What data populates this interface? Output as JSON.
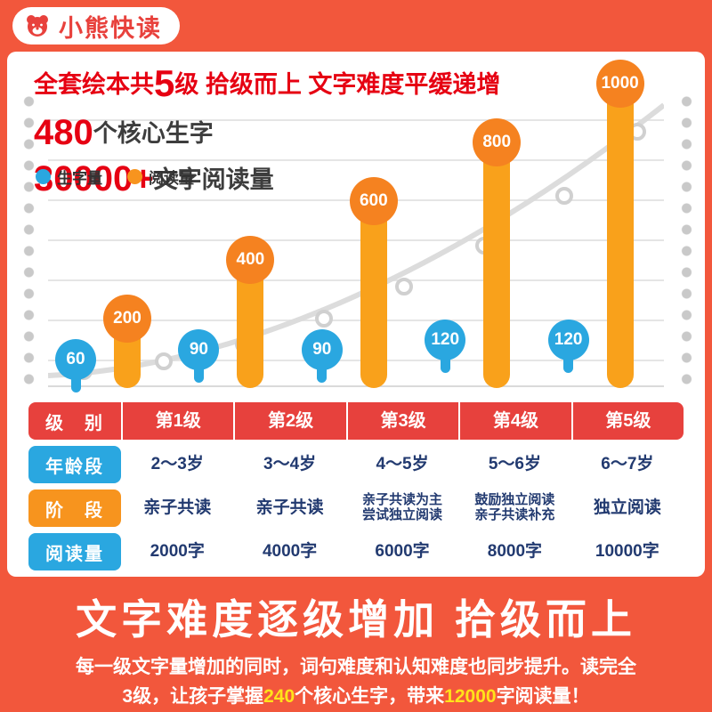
{
  "brand": {
    "name": "小熊快读",
    "logo": "bear-icon"
  },
  "card": {
    "title": {
      "pre": "全套绘本共",
      "big": "5",
      "post": "级  拾级而上  文字难度平缓递增"
    },
    "stat1": {
      "big": "480",
      "rest": "个核心生字"
    },
    "stat2": {
      "big": "30000+",
      "rest": "文字阅读量"
    },
    "legend": [
      {
        "label": "生字量",
        "color": "#2aa7e0"
      },
      {
        "label": "阅读量",
        "color": "#f7941e"
      }
    ]
  },
  "chart_data": {
    "type": "bar",
    "categories": [
      "第1级",
      "第2级",
      "第3级",
      "第4级",
      "第5级"
    ],
    "series": [
      {
        "name": "生字量",
        "color": "#2aa7e0",
        "values": [
          60,
          90,
          90,
          120,
          120
        ]
      },
      {
        "name": "阅读量",
        "color": "#f9a11b",
        "values": [
          200,
          400,
          600,
          800,
          1000
        ]
      }
    ],
    "ylim": [
      0,
      1000
    ],
    "grid": true,
    "legend_position": "top-left",
    "title": "全套绘本共5级 文字难度平缓递增"
  },
  "table": {
    "rows": [
      {
        "label": "级　别",
        "style": "red",
        "values": [
          "第1级",
          "第2级",
          "第3级",
          "第4级",
          "第5级"
        ]
      },
      {
        "label": "年龄段",
        "style": "blue",
        "values": [
          "2～3岁",
          "3～4岁",
          "4～5岁",
          "5～6岁",
          "6～7岁"
        ]
      },
      {
        "label": "阶　段",
        "style": "orange",
        "values": [
          "亲子共读",
          "亲子共读",
          "亲子共读为主\n尝试独立阅读",
          "鼓励独立阅读\n亲子共读补充",
          "独立阅读"
        ]
      },
      {
        "label": "阅读量",
        "style": "blue",
        "values": [
          "2000字",
          "4000字",
          "6000字",
          "8000字",
          "10000字"
        ]
      }
    ]
  },
  "footer": {
    "headline": "文字难度逐级增加 拾级而上",
    "line1": "每一级文字量增加的同时，词句难度和认知难度也同步提升。读完全",
    "line2_parts": [
      {
        "text": "3级，让孩子掌握",
        "hl": false
      },
      {
        "text": "240",
        "hl": true
      },
      {
        "text": "个核心生字，带来",
        "hl": false
      },
      {
        "text": "12000",
        "hl": true
      },
      {
        "text": "字阅读量！",
        "hl": false
      }
    ]
  },
  "colors": {
    "background": "#f2573c",
    "title_red": "#e60012",
    "table_red": "#e7413d",
    "blue": "#2aa7e0",
    "orange_bar": "#f9a11b",
    "orange_cap": "#f58220",
    "highlight_yellow": "#ffe31a",
    "navy_text": "#223a70",
    "dot_gray": "#c9c9c9"
  }
}
